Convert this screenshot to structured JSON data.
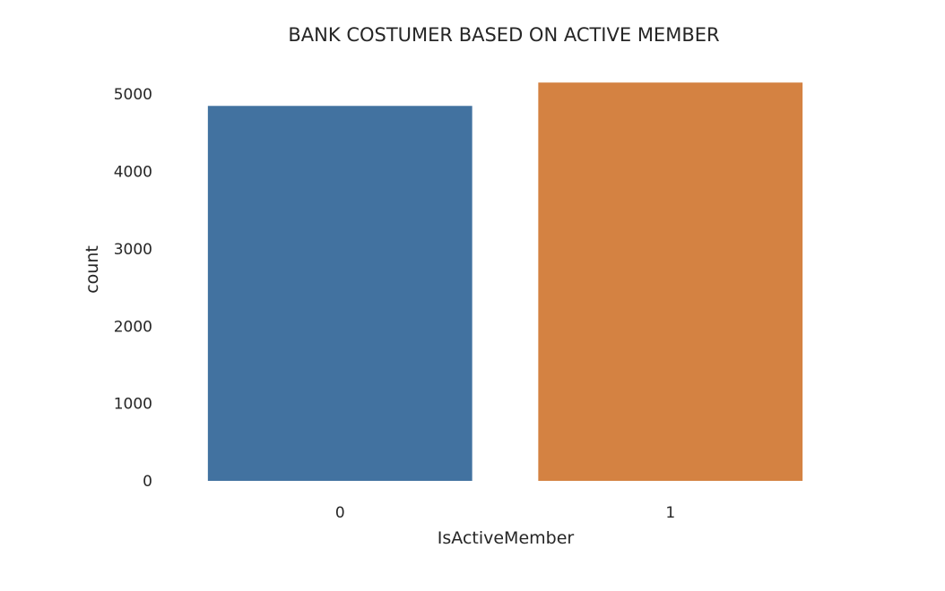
{
  "chart_data": {
    "type": "bar",
    "title": "BANK COSTUMER BASED ON ACTIVE MEMBER",
    "xlabel": "IsActiveMember",
    "ylabel": "count",
    "categories": [
      "0",
      "1"
    ],
    "values": [
      4849,
      5151
    ],
    "colors": [
      "#4272a0",
      "#d48242"
    ],
    "yticks": [
      0,
      1000,
      2000,
      3000,
      4000,
      5000
    ],
    "ylim": [
      0,
      5408
    ],
    "grid": false,
    "legend": "none"
  }
}
